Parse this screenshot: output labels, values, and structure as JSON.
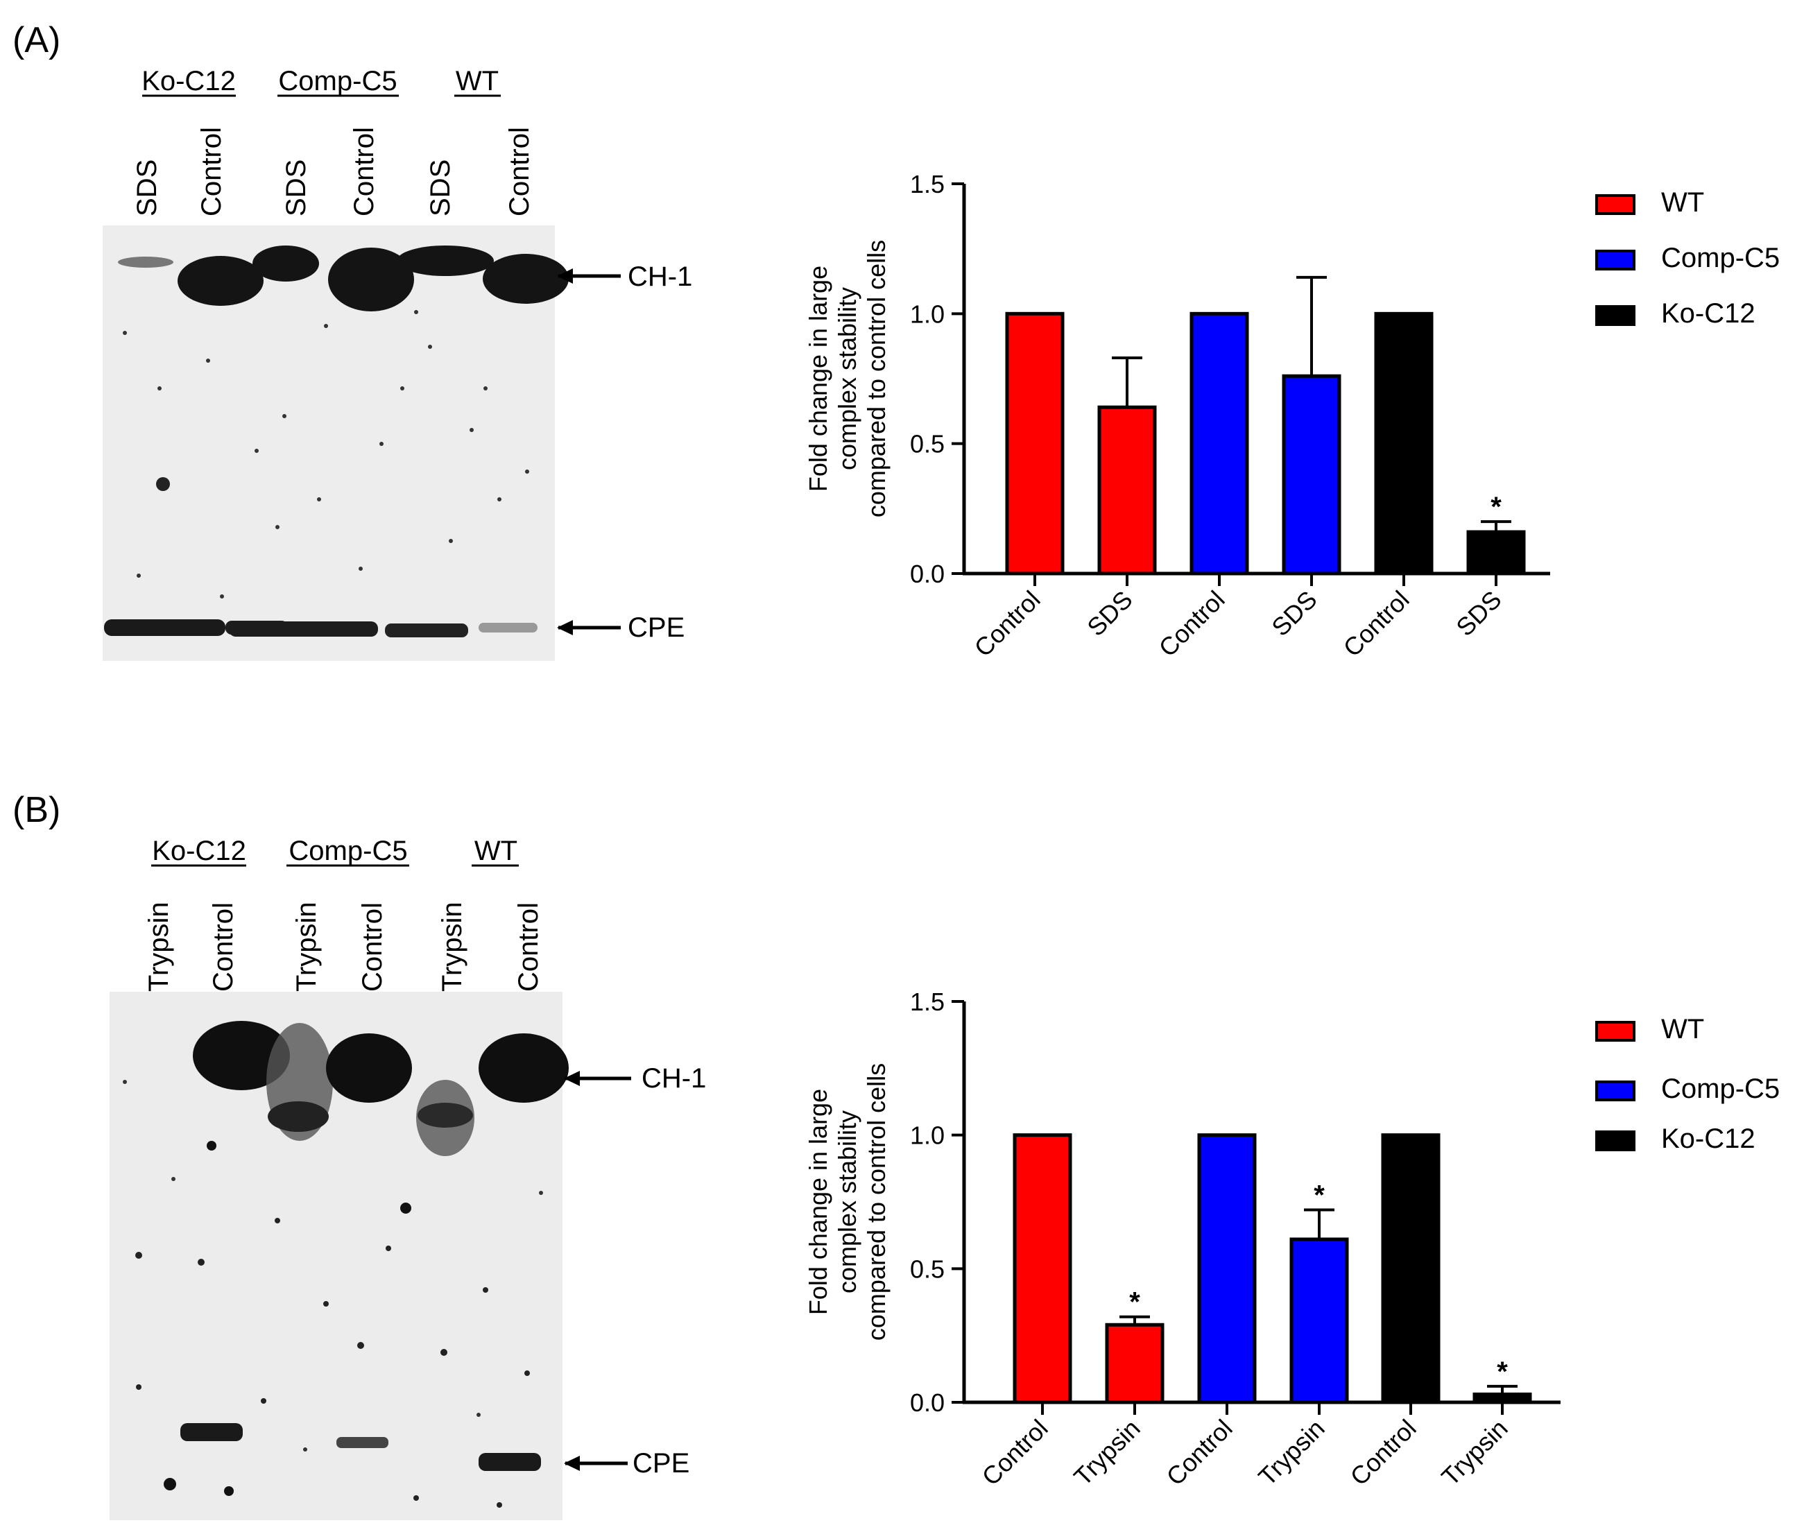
{
  "panelA": {
    "label": "(A)",
    "blot": {
      "groups": [
        "Ko-C12",
        "Comp-C5",
        "WT"
      ],
      "lanes": [
        "SDS",
        "Control",
        "SDS",
        "Control",
        "SDS",
        "Control"
      ],
      "band_labels": [
        "CH-1",
        "CPE"
      ]
    }
  },
  "panelB": {
    "label": "(B)",
    "blot": {
      "groups": [
        "Ko-C12",
        "Comp-C5",
        "WT"
      ],
      "lanes": [
        "Trypsin",
        "Control",
        "Trypsin",
        "Control",
        "Trypsin",
        "Control"
      ],
      "band_labels": [
        "CH-1",
        "CPE"
      ]
    }
  },
  "legend": {
    "entries": [
      {
        "name": "WT",
        "color": "#ff0000"
      },
      {
        "name": "Comp-C5",
        "color": "#0000ff"
      },
      {
        "name": "Ko-C12",
        "color": "#000000"
      }
    ]
  },
  "chart_data": [
    {
      "type": "bar",
      "title": "",
      "xlabel": "",
      "ylabel": "Fold change in large complex stability compared to control cells",
      "ylabel_lines": [
        "Fold change in large",
        "complex stability",
        "compared to control cells"
      ],
      "ylim": [
        0,
        1.5
      ],
      "yticks": [
        "0.0",
        "0.5",
        "1.0",
        "1.5"
      ],
      "categories": [
        "Control",
        "SDS",
        "Control",
        "SDS",
        "Control",
        "SDS"
      ],
      "values": [
        1.0,
        0.64,
        1.0,
        0.76,
        1.0,
        0.16
      ],
      "errors": [
        0,
        0.19,
        0,
        0.38,
        0,
        0.04
      ],
      "significance": [
        "",
        "",
        "",
        "",
        "",
        "*"
      ],
      "colors": [
        "#ff0000",
        "#ff0000",
        "#0000ff",
        "#0000ff",
        "#000000",
        "#000000"
      ],
      "series_names": [
        "WT",
        "WT",
        "Comp-C5",
        "Comp-C5",
        "Ko-C12",
        "Ko-C12"
      ]
    },
    {
      "type": "bar",
      "title": "",
      "xlabel": "",
      "ylabel": "Fold change in large complex stability compared to control cells",
      "ylabel_lines": [
        "Fold change in large",
        "complex stability",
        "compared to control cells"
      ],
      "ylim": [
        0,
        1.5
      ],
      "yticks": [
        "0.0",
        "0.5",
        "1.0",
        "1.5"
      ],
      "categories": [
        "Control",
        "Trypsin",
        "Control",
        "Trypsin",
        "Control",
        "Trypsin"
      ],
      "values": [
        1.0,
        0.29,
        1.0,
        0.61,
        1.0,
        0.03
      ],
      "errors": [
        0,
        0.03,
        0,
        0.11,
        0,
        0.03
      ],
      "significance": [
        "",
        "*",
        "",
        "*",
        "",
        "*"
      ],
      "colors": [
        "#ff0000",
        "#ff0000",
        "#0000ff",
        "#0000ff",
        "#000000",
        "#000000"
      ],
      "series_names": [
        "WT",
        "WT",
        "Comp-C5",
        "Comp-C5",
        "Ko-C12",
        "Ko-C12"
      ]
    }
  ]
}
